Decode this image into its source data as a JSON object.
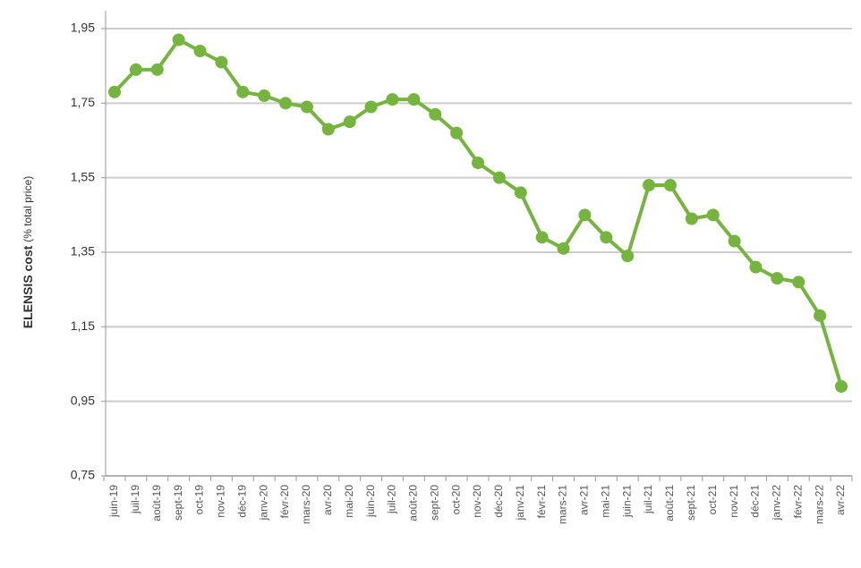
{
  "chart_data": {
    "type": "line",
    "y_label": "ELENSIS cost",
    "y_label_unit": "(% total price)",
    "categories": [
      "juin-19",
      "juil-19",
      "août-19",
      "sept-19",
      "oct-19",
      "nov-19",
      "déc-19",
      "janv-20",
      "févr-20",
      "mars-20",
      "avr-20",
      "mai-20",
      "juin-20",
      "juil-20",
      "août-20",
      "sept-20",
      "oct-20",
      "nov-20",
      "déc-20",
      "janv-21",
      "févr-21",
      "mars-21",
      "avr-21",
      "mai-21",
      "juin-21",
      "juil-21",
      "août-21",
      "sept-21",
      "oct-21",
      "nov-21",
      "déc-21",
      "janv-22",
      "févr-22",
      "mars-22",
      "avr-22"
    ],
    "values": [
      1.78,
      1.84,
      1.84,
      1.92,
      1.89,
      1.86,
      1.78,
      1.77,
      1.75,
      1.74,
      1.68,
      1.7,
      1.74,
      1.76,
      1.76,
      1.72,
      1.67,
      1.59,
      1.55,
      1.51,
      1.39,
      1.36,
      1.45,
      1.39,
      1.34,
      1.53,
      1.53,
      1.44,
      1.45,
      1.38,
      1.31,
      1.28,
      1.27,
      1.18,
      0.99
    ],
    "color": "#76b440",
    "ylim": [
      0.75,
      1.95
    ],
    "yticks": [
      {
        "value": 0.75,
        "label": "0,75"
      },
      {
        "value": 0.95,
        "label": "0,95"
      },
      {
        "value": 1.15,
        "label": "1,15"
      },
      {
        "value": 1.35,
        "label": "1,35"
      },
      {
        "value": 1.55,
        "label": "1,55"
      },
      {
        "value": 1.75,
        "label": "1,75"
      },
      {
        "value": 1.95,
        "label": "1,95"
      }
    ],
    "grid": true
  }
}
